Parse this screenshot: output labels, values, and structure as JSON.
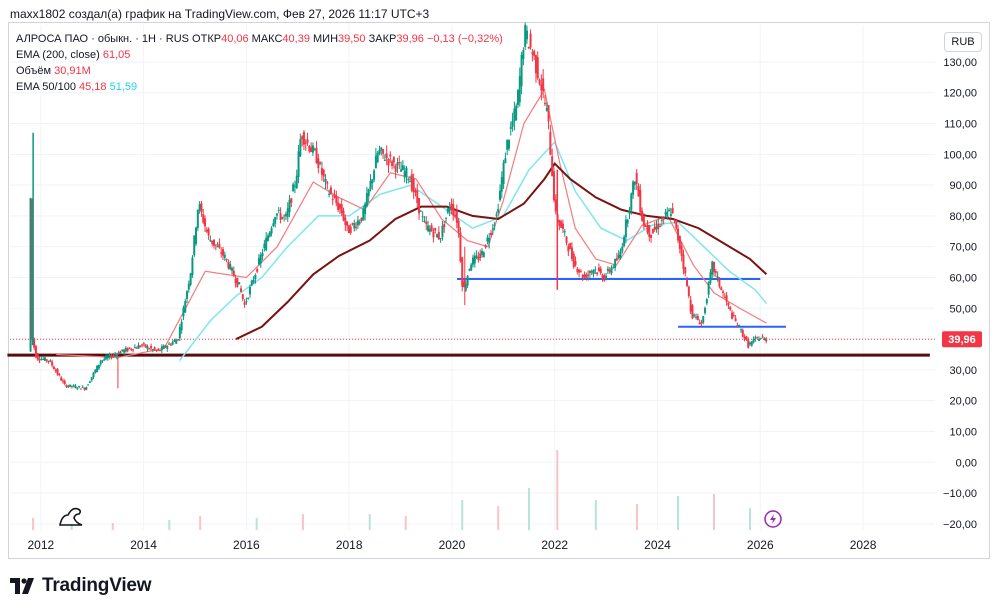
{
  "caption": "maxx1802 создал(а) график на TradingView.com, Фев 27, 2026 11:17 UTC+3",
  "legend": {
    "symbol": "АЛРОСА ПАО · обыкн. · 1Н · RUS",
    "open_label": "ОТКР",
    "open": "40,06",
    "high_label": "МАКС",
    "high": "40,39",
    "low_label": "МИН",
    "low": "39,50",
    "close_label": "ЗАКР",
    "close": "39,96",
    "change": "−0,13 (−0,32%)",
    "ema200_label": "EMA (200, close)",
    "ema200": "61,05",
    "volume_label": "Объём",
    "volume": "30,91M",
    "ema50100_label": "EMA 50/100",
    "ema50": "45,18",
    "ema100": "51,59"
  },
  "currency": "RUB",
  "brand": "TradingView",
  "colors": {
    "up": "#089981",
    "down": "#f23645",
    "ema50": "#f47c7c",
    "ema100": "#7fe6f0",
    "ema200": "#7a1212",
    "support": "#5c0a0a",
    "level": "#2962ff",
    "price_tag": "#f23645"
  },
  "chart_data": {
    "type": "candlestick",
    "title": "АЛРОСА ПАО · обыкн. · 1Н · RUS",
    "ylim": [
      -22,
      142
    ],
    "xlim": [
      2011.4,
      2029.4
    ],
    "y_ticks": [
      -20,
      -10,
      0,
      10,
      20,
      30,
      40,
      50,
      60,
      70,
      80,
      90,
      100,
      110,
      120,
      130
    ],
    "y_tick_labels": [
      "−20,00",
      "−10,00",
      "0,00",
      "10,00",
      "20,00",
      "30,00",
      "40,00",
      "50,00",
      "60,00",
      "70,00",
      "80,00",
      "90,00",
      "100,00",
      "110,00",
      "120,00",
      "130,00"
    ],
    "x_ticks": [
      2012,
      2014,
      2016,
      2018,
      2020,
      2022,
      2024,
      2026,
      2028
    ],
    "x_tick_labels": [
      "2012",
      "2014",
      "2016",
      "2018",
      "2020",
      "2022",
      "2024",
      "2026",
      "2028"
    ],
    "last_price": 39.96,
    "last_price_label": "39,96",
    "price_path": [
      [
        2011.8,
        36
      ],
      [
        2011.85,
        107
      ],
      [
        2011.87,
        40
      ],
      [
        2011.95,
        34
      ],
      [
        2012.2,
        33
      ],
      [
        2012.5,
        25
      ],
      [
        2012.9,
        24
      ],
      [
        2013.2,
        33
      ],
      [
        2013.6,
        36
      ],
      [
        2014.0,
        38
      ],
      [
        2014.3,
        36
      ],
      [
        2014.7,
        40
      ],
      [
        2014.95,
        62
      ],
      [
        2015.1,
        84
      ],
      [
        2015.3,
        73
      ],
      [
        2015.6,
        67
      ],
      [
        2015.9,
        57
      ],
      [
        2016.0,
        51
      ],
      [
        2016.3,
        66
      ],
      [
        2016.6,
        81
      ],
      [
        2016.8,
        79
      ],
      [
        2017.0,
        92
      ],
      [
        2017.1,
        107
      ],
      [
        2017.4,
        99
      ],
      [
        2017.6,
        89
      ],
      [
        2017.9,
        81
      ],
      [
        2018.0,
        75
      ],
      [
        2018.3,
        80
      ],
      [
        2018.6,
        101
      ],
      [
        2018.9,
        97
      ],
      [
        2019.2,
        93
      ],
      [
        2019.5,
        77
      ],
      [
        2019.8,
        73
      ],
      [
        2020.0,
        84
      ],
      [
        2020.15,
        78
      ],
      [
        2020.25,
        55
      ],
      [
        2020.4,
        65
      ],
      [
        2020.6,
        67
      ],
      [
        2020.9,
        80
      ],
      [
        2021.1,
        103
      ],
      [
        2021.3,
        116
      ],
      [
        2021.45,
        140
      ],
      [
        2021.6,
        133
      ],
      [
        2021.75,
        124
      ],
      [
        2021.9,
        112
      ],
      [
        2022.0,
        91
      ],
      [
        2022.05,
        80
      ],
      [
        2022.2,
        75
      ],
      [
        2022.4,
        65
      ],
      [
        2022.6,
        60
      ],
      [
        2022.8,
        63
      ],
      [
        2023.0,
        60
      ],
      [
        2023.3,
        67
      ],
      [
        2023.6,
        93
      ],
      [
        2023.75,
        78
      ],
      [
        2023.9,
        74
      ],
      [
        2024.1,
        78
      ],
      [
        2024.3,
        82
      ],
      [
        2024.5,
        68
      ],
      [
        2024.7,
        48
      ],
      [
        2024.9,
        45
      ],
      [
        2025.1,
        64
      ],
      [
        2025.3,
        55
      ],
      [
        2025.5,
        47
      ],
      [
        2025.65,
        43
      ],
      [
        2025.8,
        38
      ],
      [
        2026.0,
        40.6
      ],
      [
        2026.12,
        39.96
      ]
    ],
    "ema50_path": [
      [
        2012.3,
        35
      ],
      [
        2013.5,
        34
      ],
      [
        2014.4,
        37
      ],
      [
        2015.2,
        62
      ],
      [
        2016.0,
        60
      ],
      [
        2016.6,
        70
      ],
      [
        2017.3,
        91
      ],
      [
        2017.8,
        86
      ],
      [
        2018.3,
        82
      ],
      [
        2018.8,
        94
      ],
      [
        2019.3,
        92
      ],
      [
        2019.8,
        79
      ],
      [
        2020.3,
        72
      ],
      [
        2020.7,
        70
      ],
      [
        2021.0,
        85
      ],
      [
        2021.4,
        110
      ],
      [
        2021.8,
        121
      ],
      [
        2022.1,
        97
      ],
      [
        2022.4,
        76
      ],
      [
        2022.8,
        66
      ],
      [
        2023.2,
        64
      ],
      [
        2023.7,
        77
      ],
      [
        2024.2,
        80
      ],
      [
        2024.7,
        64
      ],
      [
        2025.1,
        55
      ],
      [
        2025.6,
        50
      ],
      [
        2026.12,
        45.18
      ]
    ],
    "ema100_path": [
      [
        2014.7,
        33
      ],
      [
        2015.3,
        46
      ],
      [
        2015.8,
        54
      ],
      [
        2016.3,
        60
      ],
      [
        2016.8,
        70
      ],
      [
        2017.4,
        80
      ],
      [
        2018.0,
        80
      ],
      [
        2018.6,
        87
      ],
      [
        2019.2,
        90
      ],
      [
        2019.8,
        83
      ],
      [
        2020.4,
        76
      ],
      [
        2021.0,
        80
      ],
      [
        2021.5,
        95
      ],
      [
        2022.0,
        104
      ],
      [
        2022.4,
        88
      ],
      [
        2022.9,
        76
      ],
      [
        2023.4,
        72
      ],
      [
        2023.9,
        77
      ],
      [
        2024.4,
        78
      ],
      [
        2024.9,
        70
      ],
      [
        2025.4,
        62
      ],
      [
        2025.9,
        56
      ],
      [
        2026.12,
        51.59
      ]
    ],
    "ema200_path": [
      [
        2015.8,
        40
      ],
      [
        2016.3,
        44
      ],
      [
        2016.8,
        52
      ],
      [
        2017.3,
        61
      ],
      [
        2017.8,
        67
      ],
      [
        2018.4,
        72
      ],
      [
        2018.9,
        79
      ],
      [
        2019.4,
        83
      ],
      [
        2019.9,
        83
      ],
      [
        2020.4,
        80
      ],
      [
        2020.9,
        79
      ],
      [
        2021.4,
        84
      ],
      [
        2021.8,
        92
      ],
      [
        2022.0,
        97
      ],
      [
        2022.3,
        92
      ],
      [
        2022.8,
        86
      ],
      [
        2023.3,
        82
      ],
      [
        2023.8,
        80
      ],
      [
        2024.3,
        79
      ],
      [
        2024.8,
        76
      ],
      [
        2025.3,
        71
      ],
      [
        2025.8,
        66
      ],
      [
        2026.12,
        61.05
      ]
    ],
    "volume_bars": [
      [
        2011.85,
        12
      ],
      [
        2012.6,
        6
      ],
      [
        2013.4,
        7
      ],
      [
        2014.5,
        10
      ],
      [
        2015.1,
        14
      ],
      [
        2016.2,
        12
      ],
      [
        2017.1,
        16
      ],
      [
        2018.4,
        16
      ],
      [
        2019.1,
        14
      ],
      [
        2020.2,
        30
      ],
      [
        2020.9,
        24
      ],
      [
        2021.5,
        42
      ],
      [
        2022.05,
        80
      ],
      [
        2022.8,
        30
      ],
      [
        2023.6,
        26
      ],
      [
        2024.4,
        34
      ],
      [
        2025.1,
        36
      ],
      [
        2025.8,
        22
      ]
    ],
    "levels": [
      {
        "name": "support",
        "y": 34.8,
        "x0": 2011.35,
        "x1": 2029.3
      },
      {
        "name": "level-60",
        "y": 59.5,
        "x0": 2020.1,
        "x1": 2026.0
      },
      {
        "name": "level-44",
        "y": 44.0,
        "x0": 2024.4,
        "x1": 2026.5
      }
    ]
  }
}
